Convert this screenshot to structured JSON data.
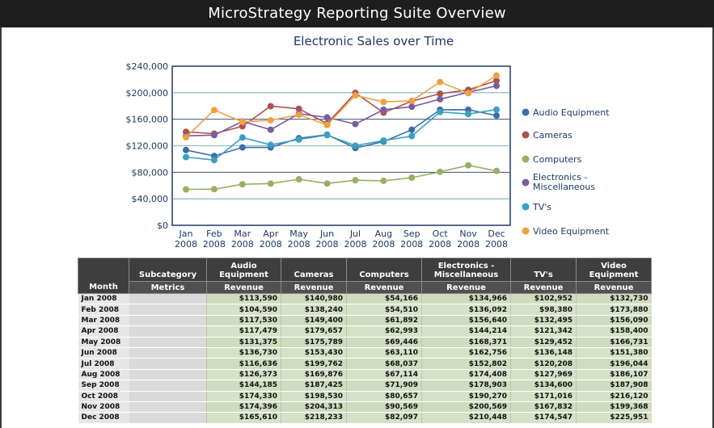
{
  "window": {
    "title": "MicroStrategy Reporting Suite Overview"
  },
  "colors": {
    "titlebar_bg": "#1e1e1e",
    "axis_text": "#1f3864",
    "table_header_bg": "#3e3e3e",
    "table_value_bg": "#cfdcbf"
  },
  "chart_data": {
    "type": "line",
    "title": "Electronic Sales over Time",
    "xlabel": "",
    "ylabel": "",
    "categories": [
      "Jan 2008",
      "Feb 2008",
      "Mar 2008",
      "Apr 2008",
      "May 2008",
      "Jun 2008",
      "Jul 2008",
      "Aug 2008",
      "Sep 2008",
      "Oct 2008",
      "Nov 2008",
      "Dec 2008"
    ],
    "x_tick_labels": [
      [
        "Jan",
        "2008"
      ],
      [
        "Feb",
        "2008"
      ],
      [
        "Mar",
        "2008"
      ],
      [
        "Apr",
        "2008"
      ],
      [
        "May",
        "2008"
      ],
      [
        "Jun",
        "2008"
      ],
      [
        "Jul",
        "2008"
      ],
      [
        "Aug",
        "2008"
      ],
      [
        "Sep",
        "2008"
      ],
      [
        "Oct",
        "2008"
      ],
      [
        "Nov",
        "2008"
      ],
      [
        "Dec",
        "2008"
      ]
    ],
    "ylim": [
      0,
      240000
    ],
    "y_ticks": [
      0,
      40000,
      80000,
      120000,
      160000,
      200000,
      240000
    ],
    "y_tick_labels": [
      "$0",
      "$40,000",
      "$80,000",
      "$120,000",
      "$160,000",
      "$200,000",
      "$240,000"
    ],
    "grid": true,
    "legend_position": "right",
    "series": [
      {
        "name": "Audio Equipment",
        "label_lines": [
          "Audio Equipment"
        ],
        "color": "#3a6ea5",
        "values": [
          113590,
          104590,
          117530,
          117479,
          131375,
          136730,
          116636,
          126373,
          144185,
          174330,
          174396,
          165610
        ]
      },
      {
        "name": "Cameras",
        "label_lines": [
          "Cameras"
        ],
        "color": "#b0504a",
        "values": [
          140980,
          138240,
          149400,
          179657,
          175789,
          153430,
          199762,
          169876,
          187425,
          198530,
          204313,
          218233
        ]
      },
      {
        "name": "Computers",
        "label_lines": [
          "Computers"
        ],
        "color": "#98b060",
        "values": [
          54166,
          54510,
          61892,
          62993,
          69446,
          63110,
          68037,
          67114,
          71909,
          80657,
          90569,
          82097
        ]
      },
      {
        "name": "Electronics - Miscellaneous",
        "label_lines": [
          "Electronics -",
          "Miscellaneous"
        ],
        "color": "#7a5ca0",
        "values": [
          134966,
          136092,
          156640,
          144214,
          168371,
          162756,
          152802,
          174408,
          178903,
          190270,
          200569,
          210448
        ]
      },
      {
        "name": "TV's",
        "label_lines": [
          "TV's"
        ],
        "color": "#3aa0c0",
        "values": [
          102952,
          98380,
          132495,
          121342,
          129452,
          136148,
          120208,
          127969,
          134600,
          171016,
          167832,
          174547
        ]
      },
      {
        "name": "Video Equipment",
        "label_lines": [
          "Video Equipment"
        ],
        "color": "#f0a040",
        "values": [
          132730,
          173880,
          156090,
          158400,
          166731,
          151380,
          196044,
          186107,
          187908,
          216120,
          199368,
          225951
        ]
      }
    ]
  },
  "table": {
    "corner_label": "Month",
    "subcategory_label": "Subcategory",
    "metrics_label": "Metrics",
    "columns": [
      {
        "name_lines": [
          "Audio",
          "Equipment"
        ],
        "metric": "Revenue"
      },
      {
        "name_lines": [
          "Cameras"
        ],
        "metric": "Revenue"
      },
      {
        "name_lines": [
          "Computers"
        ],
        "metric": "Revenue"
      },
      {
        "name_lines": [
          "Electronics -",
          "Miscellaneous"
        ],
        "metric": "Revenue"
      },
      {
        "name_lines": [
          "TV's"
        ],
        "metric": "Revenue"
      },
      {
        "name_lines": [
          "Video",
          "Equipment"
        ],
        "metric": "Revenue"
      }
    ],
    "rows": [
      {
        "month": "Jan 2008",
        "cells": [
          "$113,590",
          "$140,980",
          "$54,166",
          "$134,966",
          "$102,952",
          "$132,730"
        ]
      },
      {
        "month": "Feb 2008",
        "cells": [
          "$104,590",
          "$138,240",
          "$54,510",
          "$136,092",
          "$98,380",
          "$173,880"
        ]
      },
      {
        "month": "Mar 2008",
        "cells": [
          "$117,530",
          "$149,400",
          "$61,892",
          "$156,640",
          "$132,495",
          "$156,090"
        ]
      },
      {
        "month": "Apr 2008",
        "cells": [
          "$117,479",
          "$179,657",
          "$62,993",
          "$144,214",
          "$121,342",
          "$158,400"
        ]
      },
      {
        "month": "May 2008",
        "cells": [
          "$131,375",
          "$175,789",
          "$69,446",
          "$168,371",
          "$129,452",
          "$166,731"
        ]
      },
      {
        "month": "Jun 2008",
        "cells": [
          "$136,730",
          "$153,430",
          "$63,110",
          "$162,756",
          "$136,148",
          "$151,380"
        ]
      },
      {
        "month": "Jul 2008",
        "cells": [
          "$116,636",
          "$199,762",
          "$68,037",
          "$152,802",
          "$120,208",
          "$196,044"
        ]
      },
      {
        "month": "Aug 2008",
        "cells": [
          "$126,373",
          "$169,876",
          "$67,114",
          "$174,408",
          "$127,969",
          "$186,107"
        ]
      },
      {
        "month": "Sep 2008",
        "cells": [
          "$144,185",
          "$187,425",
          "$71,909",
          "$178,903",
          "$134,600",
          "$187,908"
        ]
      },
      {
        "month": "Oct 2008",
        "cells": [
          "$174,330",
          "$198,530",
          "$80,657",
          "$190,270",
          "$171,016",
          "$216,120"
        ]
      },
      {
        "month": "Nov 2008",
        "cells": [
          "$174,396",
          "$204,313",
          "$90,569",
          "$200,569",
          "$167,832",
          "$199,368"
        ]
      },
      {
        "month": "Dec 2008",
        "cells": [
          "$165,610",
          "$218,233",
          "$82,097",
          "$210,448",
          "$174,547",
          "$225,951"
        ]
      }
    ]
  }
}
